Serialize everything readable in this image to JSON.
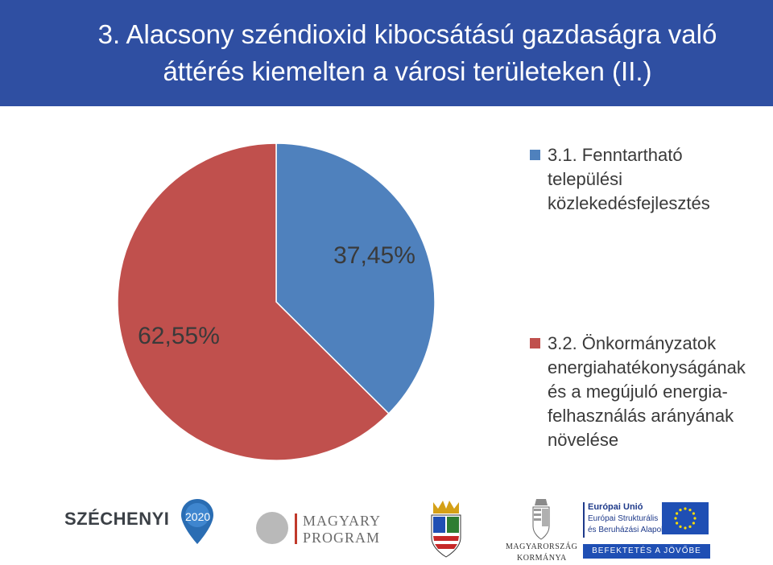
{
  "header": {
    "title_line1": "3. Alacsony széndioxid kibocsátású gazdaságra való",
    "title_line2": "áttérés kiemelten a városi területeken (II.)"
  },
  "chart_data": {
    "type": "pie",
    "series": [
      {
        "name": "3.1. Fenntartható települési közlekedésfejlesztés",
        "value": 37.45,
        "label": "37,45%",
        "color": "#4f81bd"
      },
      {
        "name": "3.2. Önkormányzatok energiahatékonyságának és a megújuló energia-felhasználás arányának növelése",
        "value": 62.55,
        "label": "62,55%",
        "color": "#c0504d"
      }
    ],
    "legend_position": "right"
  },
  "legend": [
    {
      "lines": [
        "3.1. Fenntartható",
        "települési",
        "közlekedésfejlesztés"
      ],
      "color": "#4f81bd"
    },
    {
      "lines": [
        "3.2. Önkormányzatok",
        "energiahatékonyságának",
        "és a megújuló energia-",
        "felhasználás arányának",
        "növelése"
      ],
      "color": "#c0504d"
    }
  ],
  "logos": {
    "szechenyi_text": "SZÉCHENYI",
    "szechenyi_year": "2020",
    "magyary_line1": "MAGYARY",
    "magyary_line2": "PROGRAM",
    "kormany_line1": "MAGYARORSZÁG",
    "kormany_line2": "KORMÁNYA",
    "eu_line1": "Európai Unió",
    "eu_line2": "Európai Strukturális",
    "eu_line3": "és Beruházási Alapok",
    "eu_banner": "BEFEKTETÉS A JÖVŐBE"
  },
  "colors": {
    "header_bg": "#2f4fa2",
    "slice_blue": "#4f81bd",
    "slice_red": "#c0504d"
  }
}
